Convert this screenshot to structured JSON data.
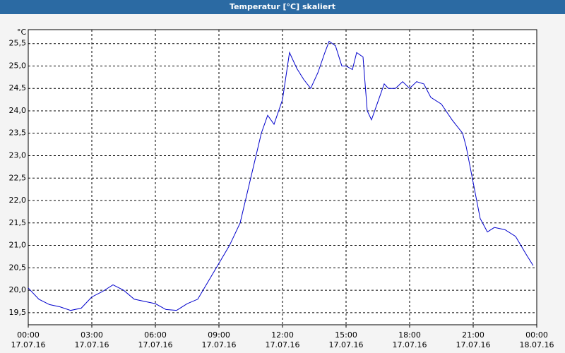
{
  "chart_data": {
    "type": "line",
    "title": "Temperatur [°C] skaliert",
    "y_label": "°C",
    "series": [
      {
        "name": "Temperatur",
        "color": "#0000cc",
        "x": [
          0,
          0.5,
          1,
          1.5,
          2,
          2.5,
          3,
          3.5,
          4,
          4.5,
          5,
          5.5,
          6,
          6.5,
          7,
          7.5,
          8,
          8.5,
          9,
          9.5,
          10,
          10.5,
          11,
          11.3,
          11.6,
          12,
          12.33,
          12.67,
          13,
          13.33,
          13.67,
          14,
          14.2,
          14.5,
          14.8,
          15,
          15.3,
          15.5,
          15.8,
          16,
          16.2,
          16.5,
          16.8,
          17,
          17.33,
          17.67,
          18,
          18.33,
          18.67,
          19,
          19.5,
          20,
          20.5,
          20.67,
          21,
          21.33,
          21.67,
          22,
          22.5,
          23,
          23.5,
          23.83
        ],
        "values": [
          20.05,
          19.8,
          19.68,
          19.63,
          19.55,
          19.6,
          19.85,
          19.97,
          20.12,
          20.0,
          19.8,
          19.75,
          19.7,
          19.57,
          19.55,
          19.7,
          19.8,
          20.2,
          20.6,
          21.0,
          21.5,
          22.5,
          23.5,
          23.9,
          23.7,
          24.25,
          25.3,
          24.95,
          24.7,
          24.5,
          24.85,
          25.3,
          25.55,
          25.45,
          25.0,
          25.0,
          24.92,
          25.3,
          25.2,
          24.0,
          23.8,
          24.2,
          24.6,
          24.5,
          24.5,
          24.65,
          24.5,
          24.65,
          24.6,
          24.3,
          24.15,
          23.8,
          23.5,
          23.2,
          22.4,
          21.6,
          21.3,
          21.4,
          21.35,
          21.2,
          20.8,
          20.55
        ]
      }
    ],
    "xlim": [
      0,
      24
    ],
    "xticks": [
      {
        "value": 0,
        "label": "00:00 17.07.16"
      },
      {
        "value": 3,
        "label": "03:00 17.07.16"
      },
      {
        "value": 6,
        "label": "06:00 17.07.16"
      },
      {
        "value": 9,
        "label": "09:00 17.07.16"
      },
      {
        "value": 12,
        "label": "12:00 17.07.16"
      },
      {
        "value": 15,
        "label": "15:00 17.07.16"
      },
      {
        "value": 18,
        "label": "18:00 17.07.16"
      },
      {
        "value": 21,
        "label": "21:00 17.07.16"
      },
      {
        "value": 24,
        "label": "00:00 18.07.16"
      }
    ],
    "ylim": [
      19.23,
      25.81
    ],
    "yticks": [
      {
        "value": 19.5,
        "label": "19,5"
      },
      {
        "value": 20,
        "label": "20,0"
      },
      {
        "value": 20.5,
        "label": "20,5"
      },
      {
        "value": 21,
        "label": "21,0"
      },
      {
        "value": 21.5,
        "label": "21,5"
      },
      {
        "value": 22,
        "label": "22,0"
      },
      {
        "value": 22.5,
        "label": "22,5"
      },
      {
        "value": 23,
        "label": "23,0"
      },
      {
        "value": 23.5,
        "label": "23,5"
      },
      {
        "value": 24,
        "label": "24,0"
      },
      {
        "value": 24.5,
        "label": "24,5"
      },
      {
        "value": 25,
        "label": "25,0"
      },
      {
        "value": 25.5,
        "label": "25,5"
      }
    ],
    "grid": true
  }
}
